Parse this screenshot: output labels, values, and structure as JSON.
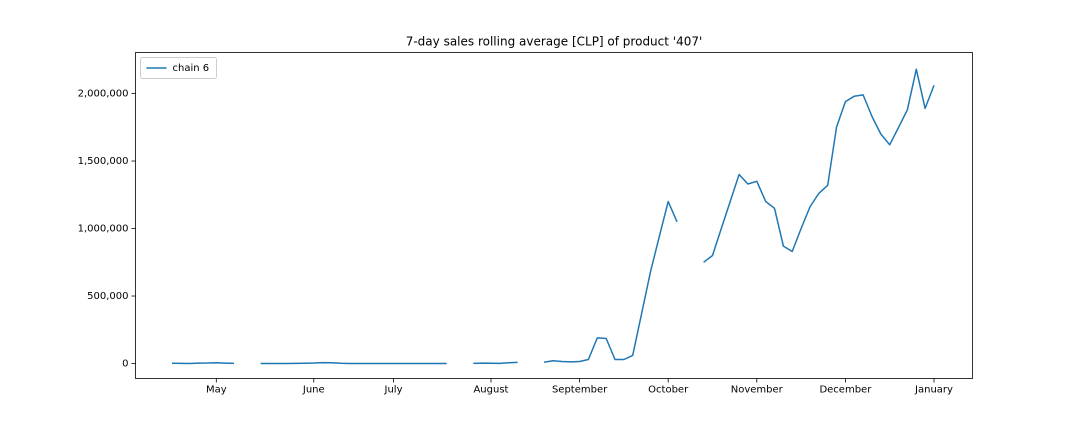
{
  "chart_data": {
    "type": "line",
    "title": "7-day sales rolling average [CLP] of product '407'",
    "categories": [
      null,
      null,
      null,
      null,
      null,
      "May",
      null,
      null,
      null,
      null,
      null,
      null,
      null,
      null,
      null,
      null,
      "June",
      null,
      null,
      null,
      null,
      null,
      null,
      null,
      null,
      "July",
      null,
      null,
      null,
      null,
      null,
      null,
      null,
      null,
      null,
      null,
      "August",
      null,
      null,
      null,
      null,
      null,
      null,
      null,
      null,
      null,
      "September",
      null,
      null,
      null,
      null,
      null,
      null,
      null,
      null,
      null,
      "October",
      null,
      null,
      null,
      null,
      null,
      null,
      null,
      null,
      null,
      "November",
      null,
      null,
      null,
      null,
      null,
      null,
      null,
      null,
      null,
      "December",
      null,
      null,
      null,
      null,
      null,
      null,
      null,
      null,
      null,
      "January"
    ],
    "series": [
      {
        "name": "chain 6",
        "color": "#1f77b4",
        "values": [
          2000,
          1000,
          0,
          3000,
          4000,
          6000,
          3000,
          1000,
          null,
          null,
          0,
          0,
          0,
          0,
          1000,
          2000,
          4000,
          7000,
          6000,
          2000,
          0,
          0,
          0,
          0,
          0,
          0,
          0,
          0,
          0,
          0,
          0,
          0,
          null,
          null,
          1000,
          3000,
          2000,
          1000,
          5000,
          8000,
          null,
          null,
          10000,
          20000,
          15000,
          12000,
          15000,
          30000,
          190000,
          185000,
          30000,
          30000,
          60000,
          370000,
          680000,
          940000,
          1200000,
          1050000,
          null,
          null,
          750000,
          800000,
          1000000,
          1200000,
          1400000,
          1330000,
          1350000,
          1200000,
          1150000,
          870000,
          830000,
          1000000,
          1160000,
          1260000,
          1320000,
          1750000,
          1940000,
          1980000,
          1990000,
          1830000,
          1700000,
          1620000,
          1750000,
          1880000,
          2180000,
          1890000,
          2060000
        ]
      }
    ],
    "ylim": [
      -111000,
      2304000
    ],
    "yticks": [
      0,
      {
        "value": 500000,
        "label": "500,000"
      },
      {
        "value": 1000000,
        "label": "1,000,000"
      },
      {
        "value": 1500000,
        "label": "1,500,000"
      },
      {
        "value": 2000000,
        "label": "2,000,000"
      }
    ],
    "legend": "upper left",
    "grid": false
  }
}
